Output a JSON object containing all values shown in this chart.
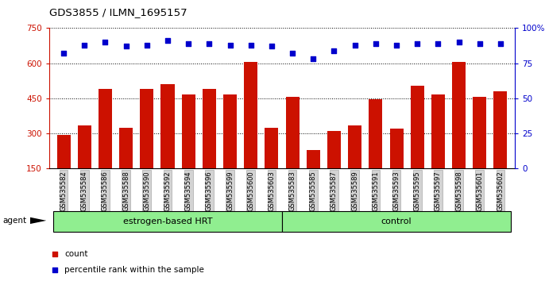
{
  "title": "GDS3855 / ILMN_1695157",
  "samples": [
    "GSM535582",
    "GSM535584",
    "GSM535586",
    "GSM535588",
    "GSM535590",
    "GSM535592",
    "GSM535594",
    "GSM535596",
    "GSM535599",
    "GSM535600",
    "GSM535603",
    "GSM535583",
    "GSM535585",
    "GSM535587",
    "GSM535589",
    "GSM535591",
    "GSM535593",
    "GSM535595",
    "GSM535597",
    "GSM535598",
    "GSM535601",
    "GSM535602"
  ],
  "counts": [
    295,
    335,
    490,
    325,
    490,
    510,
    465,
    490,
    465,
    605,
    325,
    455,
    230,
    310,
    335,
    445,
    320,
    505,
    465,
    605,
    455,
    480
  ],
  "percentiles": [
    82,
    88,
    90,
    87,
    88,
    91,
    89,
    89,
    88,
    88,
    87,
    82,
    78,
    84,
    88,
    89,
    88,
    89,
    89,
    90,
    89,
    89
  ],
  "group1_label": "estrogen-based HRT",
  "group1_count": 11,
  "group2_label": "control",
  "group2_count": 11,
  "bar_color": "#cc1100",
  "dot_color": "#0000cc",
  "ylim_left": [
    150,
    750
  ],
  "ylim_right": [
    0,
    100
  ],
  "yticks_left": [
    150,
    300,
    450,
    600,
    750
  ],
  "yticks_right": [
    0,
    25,
    50,
    75,
    100
  ],
  "group1_bg": "#90ee90",
  "group2_bg": "#90ee90",
  "agent_label": "agent",
  "legend_count_label": "count",
  "legend_pct_label": "percentile rank within the sample",
  "background_color": "#ffffff",
  "tick_label_bg": "#d3d3d3",
  "bar_bottom": 150
}
